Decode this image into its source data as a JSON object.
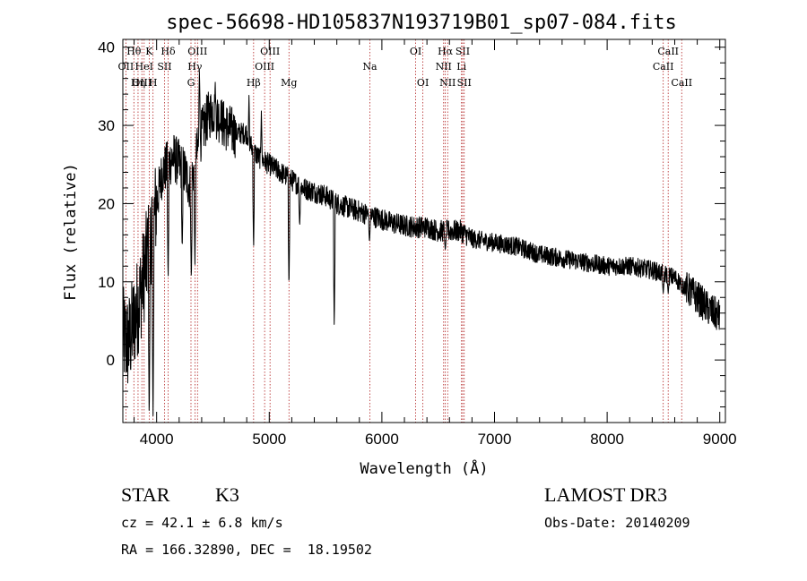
{
  "chart_data": {
    "type": "line",
    "title": "spec-56698-HD105837N193719B01_sp07-084.fits",
    "xlabel": "Wavelength (Å)",
    "ylabel": "Flux (relative)",
    "xlim": [
      3700,
      9050
    ],
    "ylim": [
      -8,
      41
    ],
    "xticks": [
      4000,
      5000,
      6000,
      7000,
      8000,
      9000
    ],
    "yticks": [
      0,
      10,
      20,
      30,
      40
    ],
    "series": [
      {
        "name": "spectrum",
        "anchors": [
          [
            3700,
            3
          ],
          [
            3750,
            2
          ],
          [
            3800,
            5
          ],
          [
            3850,
            8
          ],
          [
            3900,
            12
          ],
          [
            3950,
            16
          ],
          [
            4000,
            20
          ],
          [
            4050,
            24
          ],
          [
            4100,
            25
          ],
          [
            4150,
            26
          ],
          [
            4200,
            25
          ],
          [
            4250,
            24
          ],
          [
            4300,
            22
          ],
          [
            4350,
            26
          ],
          [
            4400,
            29
          ],
          [
            4450,
            31
          ],
          [
            4500,
            32
          ],
          [
            4550,
            31
          ],
          [
            4600,
            30
          ],
          [
            4650,
            29.5
          ],
          [
            4700,
            29
          ],
          [
            4750,
            29
          ],
          [
            4800,
            29
          ],
          [
            4850,
            27
          ],
          [
            4900,
            26
          ],
          [
            5000,
            25
          ],
          [
            5100,
            24
          ],
          [
            5200,
            23
          ],
          [
            5300,
            22
          ],
          [
            5400,
            21.5
          ],
          [
            5500,
            21
          ],
          [
            5600,
            20
          ],
          [
            5700,
            19.5
          ],
          [
            5800,
            19
          ],
          [
            5900,
            18.5
          ],
          [
            6000,
            18
          ],
          [
            6100,
            17.5
          ],
          [
            6200,
            17.2
          ],
          [
            6300,
            17
          ],
          [
            6400,
            17
          ],
          [
            6500,
            16.5
          ],
          [
            6600,
            16.5
          ],
          [
            6700,
            16.5
          ],
          [
            6800,
            15.5
          ],
          [
            7000,
            15
          ],
          [
            7200,
            14.5
          ],
          [
            7400,
            13.5
          ],
          [
            7600,
            13
          ],
          [
            7800,
            12.5
          ],
          [
            8000,
            12
          ],
          [
            8200,
            12
          ],
          [
            8400,
            11.5
          ],
          [
            8600,
            10.5
          ],
          [
            8800,
            8
          ],
          [
            8900,
            6.5
          ],
          [
            9000,
            5.5
          ]
        ],
        "dips": [
          [
            3934,
            -8
          ],
          [
            3968,
            -8
          ],
          [
            4102,
            10
          ],
          [
            4227,
            14
          ],
          [
            4308,
            10
          ],
          [
            4340,
            12
          ],
          [
            4861,
            14
          ],
          [
            5175,
            9
          ],
          [
            5270,
            17
          ],
          [
            5577,
            4
          ],
          [
            5890,
            15
          ],
          [
            6563,
            14
          ],
          [
            8498,
            8.5
          ],
          [
            8542,
            8.5
          ],
          [
            8662,
            8.5
          ]
        ],
        "peaks": [
          [
            4380,
            37
          ],
          [
            4520,
            36
          ],
          [
            4570,
            32
          ],
          [
            4820,
            34
          ],
          [
            4930,
            32
          ]
        ]
      }
    ],
    "emission_lines": [
      {
        "label": "Hθ",
        "wavelength": 3798,
        "row": 1
      },
      {
        "label": "OII",
        "wavelength": 3727,
        "row": 2
      },
      {
        "label": "OIII",
        "wavelength": 3869,
        "row": 3
      },
      {
        "label": "K",
        "wavelength": 3934,
        "row": 1
      },
      {
        "label": "HeI",
        "wavelength": 3889,
        "row": 2
      },
      {
        "label": "Hη",
        "wavelength": 3835,
        "row": 3
      },
      {
        "label": "Hδ",
        "wavelength": 4102,
        "row": 1
      },
      {
        "label": "SII",
        "wavelength": 4070,
        "row": 2
      },
      {
        "label": "H",
        "wavelength": 3968,
        "row": 3
      },
      {
        "label": "OIII",
        "wavelength": 4363,
        "row": 1
      },
      {
        "label": "Hγ",
        "wavelength": 4340,
        "row": 2
      },
      {
        "label": "G",
        "wavelength": 4305,
        "row": 3
      },
      {
        "label": "OIII",
        "wavelength": 5007,
        "row": 1
      },
      {
        "label": "OIII",
        "wavelength": 4959,
        "row": 2
      },
      {
        "label": "Hβ",
        "wavelength": 4861,
        "row": 3
      },
      {
        "label": "Mg",
        "wavelength": 5175,
        "row": 3
      },
      {
        "label": "Na",
        "wavelength": 5893,
        "row": 2
      },
      {
        "label": "OI",
        "wavelength": 6300,
        "row": 1
      },
      {
        "label": "OI",
        "wavelength": 6364,
        "row": 3
      },
      {
        "label": "Hα",
        "wavelength": 6563,
        "row": 1
      },
      {
        "label": "NII",
        "wavelength": 6548,
        "row": 2
      },
      {
        "label": "NII",
        "wavelength": 6584,
        "row": 3
      },
      {
        "label": "SII",
        "wavelength": 6717,
        "row": 1
      },
      {
        "label": "Li",
        "wavelength": 6707,
        "row": 2
      },
      {
        "label": "SII",
        "wavelength": 6731,
        "row": 3
      },
      {
        "label": "CaII",
        "wavelength": 8542,
        "row": 1
      },
      {
        "label": "CaII",
        "wavelength": 8498,
        "row": 2
      },
      {
        "label": "CaII",
        "wavelength": 8662,
        "row": 3
      }
    ]
  },
  "info": {
    "class": "STAR",
    "subclass": "K3",
    "survey": "LAMOST DR3",
    "redshift": "cz = 42.1 ± 6.8 km/s",
    "obs_date": "Obs-Date: 20140209",
    "coords": "RA = 166.32890, DEC =  18.19502"
  },
  "colors": {
    "spectrum": "#000000",
    "line_markers": "#b22222"
  }
}
